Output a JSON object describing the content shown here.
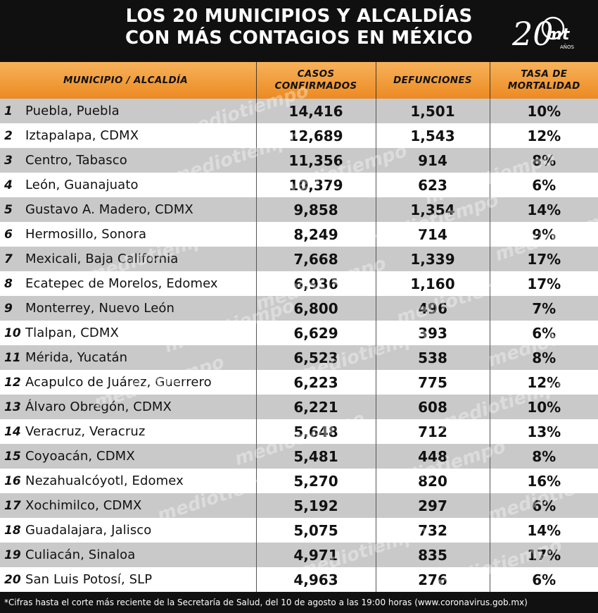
{
  "header": {
    "title_line1": "LOS 20 MUNICIPIOS Y ALCALDÍAS",
    "title_line2": "CON MÁS CONTAGIOS EN MÉXICO",
    "logo_number": "20",
    "logo_text": "mt",
    "logo_sub": "AÑOS"
  },
  "columns": {
    "municipio": "MUNICIPIO / ALCALDÍA",
    "casos_line1": "CASOS",
    "casos_line2": "CONFIRMADOS",
    "defunciones": "DEFUNCIONES",
    "tasa_line1": "TASA DE",
    "tasa_line2": "MORTALIDAD"
  },
  "rows": [
    {
      "rank": "1",
      "municipio": "Puebla, Puebla",
      "casos": "14,416",
      "defunciones": "1,501",
      "tasa": "10%"
    },
    {
      "rank": "2",
      "municipio": "Iztapalapa, CDMX",
      "casos": "12,689",
      "defunciones": "1,543",
      "tasa": "12%"
    },
    {
      "rank": "3",
      "municipio": "Centro, Tabasco",
      "casos": "11,356",
      "defunciones": "914",
      "tasa": "8%"
    },
    {
      "rank": "4",
      "municipio": "León, Guanajuato",
      "casos": "10,379",
      "defunciones": "623",
      "tasa": "6%"
    },
    {
      "rank": "5",
      "municipio": "Gustavo A. Madero, CDMX",
      "casos": "9,858",
      "defunciones": "1,354",
      "tasa": "14%"
    },
    {
      "rank": "6",
      "municipio": "Hermosillo, Sonora",
      "casos": "8,249",
      "defunciones": "714",
      "tasa": "9%"
    },
    {
      "rank": "7",
      "municipio": "Mexicali, Baja California",
      "casos": "7,668",
      "defunciones": "1,339",
      "tasa": "17%"
    },
    {
      "rank": "8",
      "municipio": "Ecatepec de Morelos, Edomex",
      "casos": "6,936",
      "defunciones": "1,160",
      "tasa": "17%"
    },
    {
      "rank": "9",
      "municipio": "Monterrey, Nuevo León",
      "casos": "6,800",
      "defunciones": "496",
      "tasa": "7%"
    },
    {
      "rank": "10",
      "municipio": "Tlalpan, CDMX",
      "casos": "6,629",
      "defunciones": "393",
      "tasa": "6%"
    },
    {
      "rank": "11",
      "municipio": "Mérida, Yucatán",
      "casos": "6,523",
      "defunciones": "538",
      "tasa": "8%"
    },
    {
      "rank": "12",
      "municipio": "Acapulco de Juárez, Guerrero",
      "casos": "6,223",
      "defunciones": "775",
      "tasa": "12%"
    },
    {
      "rank": "13",
      "municipio": "Álvaro Obregón, CDMX",
      "casos": "6,221",
      "defunciones": "608",
      "tasa": "10%"
    },
    {
      "rank": "14",
      "municipio": "Veracruz, Veracruz",
      "casos": "5,648",
      "defunciones": "712",
      "tasa": "13%"
    },
    {
      "rank": "15",
      "municipio": "Coyoacán, CDMX",
      "casos": "5,481",
      "defunciones": "448",
      "tasa": "8%"
    },
    {
      "rank": "16",
      "municipio": "Nezahualcóyotl, Edomex",
      "casos": "5,270",
      "defunciones": "820",
      "tasa": "16%"
    },
    {
      "rank": "17",
      "municipio": "Xochimilco, CDMX",
      "casos": "5,192",
      "defunciones": "297",
      "tasa": "6%"
    },
    {
      "rank": "18",
      "municipio": "Guadalajara, Jalisco",
      "casos": "5,075",
      "defunciones": "732",
      "tasa": "14%"
    },
    {
      "rank": "19",
      "municipio": "Culiacán, Sinaloa",
      "casos": "4,971",
      "defunciones": "835",
      "tasa": "17%"
    },
    {
      "rank": "20",
      "municipio": "San Luis Potosí, SLP",
      "casos": "4,963",
      "defunciones": "276",
      "tasa": "6%"
    }
  ],
  "footer": {
    "note": "*Cifras hasta el corte más reciente de la Secretaría de Salud, del 10 de agosto a las 19:00 horas (www.coronavirus.gob.mx)"
  },
  "watermark": "mediotiempo",
  "colors": {
    "header_bg": "#101010",
    "accent_orange": "#ec8a22",
    "row_gray": "#c9c9c9",
    "row_white": "#ffffff"
  }
}
